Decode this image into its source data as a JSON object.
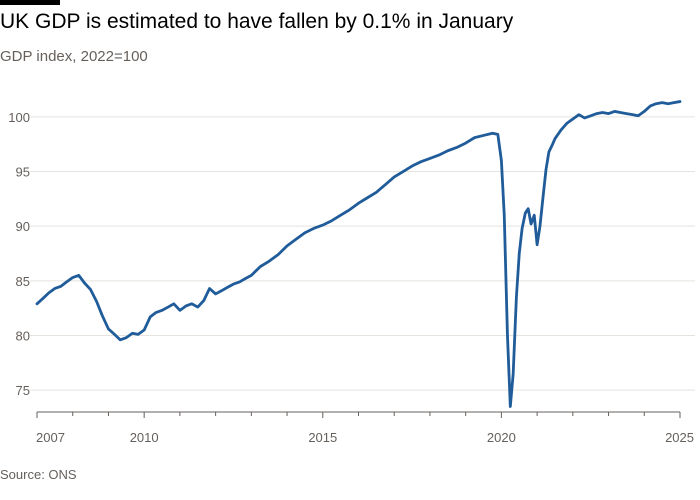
{
  "title": "UK GDP is estimated to have fallen by 0.1% in January",
  "subtitle": "GDP index, 2022=100",
  "source": "Source: ONS",
  "colors": {
    "line": "#1f5c99",
    "grid": "#e6e3df",
    "axis": "#66605c",
    "text": "#33302e"
  },
  "chart_data": {
    "type": "line",
    "title": "UK GDP is estimated to have fallen by 0.1% in January",
    "subtitle": "GDP index, 2022=100",
    "xlabel": "",
    "ylabel": "",
    "xlim": [
      2007.0,
      2025.0
    ],
    "ylim": [
      73,
      102
    ],
    "x_ticks": [
      2007,
      2010,
      2015,
      2020,
      2025
    ],
    "y_ticks": [
      75,
      80,
      85,
      90,
      95,
      100
    ],
    "grid": true,
    "series": [
      {
        "x": [
          2007.0,
          2007.17,
          2007.33,
          2007.5,
          2007.67,
          2007.83,
          2008.0,
          2008.17,
          2008.33,
          2008.5,
          2008.67,
          2008.83,
          2009.0,
          2009.17,
          2009.33,
          2009.5,
          2009.67,
          2009.83,
          2010.0,
          2010.17,
          2010.33,
          2010.5,
          2010.67,
          2010.83,
          2011.0,
          2011.17,
          2011.33,
          2011.5,
          2011.67,
          2011.83,
          2012.0,
          2012.17,
          2012.33,
          2012.5,
          2012.67,
          2012.83,
          2013.0,
          2013.25,
          2013.5,
          2013.75,
          2014.0,
          2014.25,
          2014.5,
          2014.75,
          2015.0,
          2015.25,
          2015.5,
          2015.75,
          2016.0,
          2016.25,
          2016.5,
          2016.75,
          2017.0,
          2017.25,
          2017.5,
          2017.75,
          2018.0,
          2018.25,
          2018.5,
          2018.75,
          2019.0,
          2019.25,
          2019.5,
          2019.75,
          2019.9,
          2020.0,
          2020.08,
          2020.17,
          2020.25,
          2020.33,
          2020.42,
          2020.5,
          2020.58,
          2020.67,
          2020.75,
          2020.83,
          2020.92,
          2021.0,
          2021.08,
          2021.17,
          2021.25,
          2021.33,
          2021.42,
          2021.5,
          2021.67,
          2021.83,
          2022.0,
          2022.17,
          2022.33,
          2022.5,
          2022.67,
          2022.83,
          2023.0,
          2023.17,
          2023.33,
          2023.5,
          2023.67,
          2023.83,
          2024.0,
          2024.17,
          2024.33,
          2024.5,
          2024.67,
          2024.83,
          2025.0
        ],
        "values": [
          82.9,
          83.4,
          83.9,
          84.3,
          84.5,
          84.9,
          85.3,
          85.5,
          84.8,
          84.2,
          83.1,
          81.8,
          80.6,
          80.1,
          79.6,
          79.8,
          80.2,
          80.1,
          80.5,
          81.7,
          82.1,
          82.3,
          82.6,
          82.9,
          82.3,
          82.7,
          82.9,
          82.6,
          83.2,
          84.3,
          83.8,
          84.1,
          84.4,
          84.7,
          84.9,
          85.2,
          85.5,
          86.3,
          86.8,
          87.4,
          88.2,
          88.8,
          89.4,
          89.8,
          90.1,
          90.5,
          91.0,
          91.5,
          92.1,
          92.6,
          93.1,
          93.8,
          94.5,
          95.0,
          95.5,
          95.9,
          96.2,
          96.5,
          96.9,
          97.2,
          97.6,
          98.1,
          98.3,
          98.5,
          98.4,
          96.0,
          91.0,
          80.0,
          73.5,
          76.5,
          83.5,
          87.5,
          89.8,
          91.2,
          91.6,
          90.2,
          91.0,
          88.3,
          90.0,
          92.8,
          95.2,
          96.8,
          97.4,
          98.0,
          98.8,
          99.4,
          99.8,
          100.2,
          99.9,
          100.1,
          100.3,
          100.4,
          100.3,
          100.5,
          100.4,
          100.3,
          100.2,
          100.1,
          100.5,
          101.0,
          101.2,
          101.3,
          101.2,
          101.3,
          101.4
        ]
      }
    ]
  }
}
